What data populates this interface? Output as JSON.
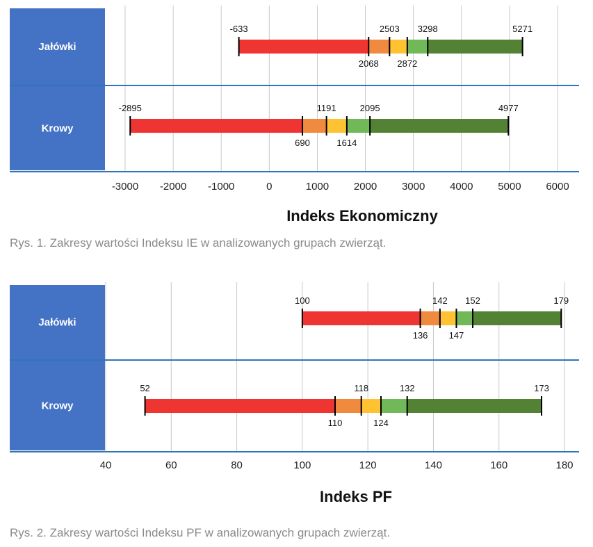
{
  "colors": {
    "category_band": "#4472c4",
    "separator": "#2e75b6",
    "grid": "#c8c8c8",
    "segments": [
      "#ee3532",
      "#f08a3e",
      "#fec232",
      "#70b858",
      "#538234"
    ]
  },
  "chart_data": [
    {
      "type": "bar",
      "subtype": "horizontal-stacked-range",
      "categories": [
        "Jałówki",
        "Krowy"
      ],
      "series": [
        {
          "category": "Jałówki",
          "bounds": [
            -633,
            2068,
            2503,
            2872,
            3298,
            5271
          ]
        },
        {
          "category": "Krowy",
          "bounds": [
            -2895,
            690,
            1191,
            1614,
            2095,
            4977
          ]
        }
      ],
      "x_ticks": [
        -3000,
        -2000,
        -1000,
        0,
        1000,
        2000,
        3000,
        4000,
        5000,
        6000
      ],
      "x_tick_labels": [
        "-3000",
        "-2000",
        "-1000",
        "0",
        "1000",
        "2000",
        "3000",
        "4000",
        "5000",
        "6000"
      ],
      "xlim": [
        -3000,
        6000
      ],
      "xlabel": "Indeks Ekonomiczny",
      "grid": true,
      "caption": "Rys. 1. Zakresy wartości Indeksu IE w analizowanych grupach zwierząt."
    },
    {
      "type": "bar",
      "subtype": "horizontal-stacked-range",
      "categories": [
        "Jałówki",
        "Krowy"
      ],
      "series": [
        {
          "category": "Jałówki",
          "bounds": [
            100,
            136,
            142,
            147,
            152,
            179
          ]
        },
        {
          "category": "Krowy",
          "bounds": [
            52,
            110,
            118,
            124,
            132,
            173
          ]
        }
      ],
      "x_ticks": [
        40,
        60,
        80,
        100,
        120,
        140,
        160,
        180
      ],
      "x_tick_labels": [
        "40",
        "60",
        "80",
        "100",
        "120",
        "140",
        "160",
        "180"
      ],
      "xlim": [
        40,
        180
      ],
      "xlabel": "Indeks PF",
      "grid": true,
      "caption": "Rys. 2. Zakresy wartości Indeksu PF w analizowanych grupach zwierząt."
    }
  ]
}
